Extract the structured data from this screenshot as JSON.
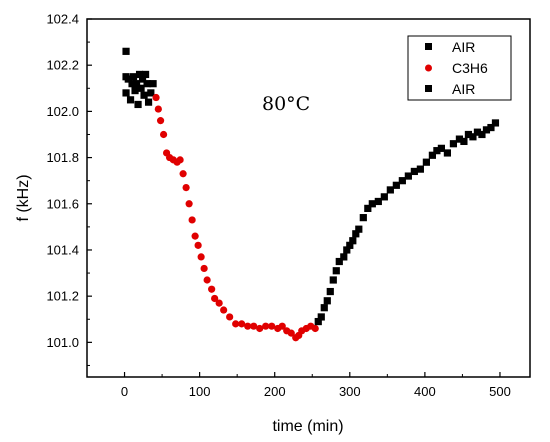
{
  "chart_data": {
    "type": "scatter",
    "xlabel": "time (min)",
    "ylabel": "f (kHz)",
    "xlim": [
      -50,
      540
    ],
    "ylim": [
      100.85,
      102.4
    ],
    "x_ticks": [
      0,
      100,
      200,
      300,
      400,
      500
    ],
    "y_ticks": [
      101.0,
      101.2,
      101.4,
      101.6,
      101.8,
      102.0,
      102.2,
      102.4
    ],
    "x_tick_labels": [
      "0",
      "100",
      "200",
      "300",
      "400",
      "500"
    ],
    "y_tick_labels": [
      "101.0",
      "101.2",
      "101.4",
      "101.6",
      "101.8",
      "102.0",
      "102.2",
      "102.4"
    ],
    "annotation": "80°C",
    "legend_position": "top-right",
    "series": [
      {
        "name": "AIR",
        "color": "#000000",
        "marker": "square",
        "points": [
          [
            2,
            102.26
          ],
          [
            2,
            102.15
          ],
          [
            2,
            102.08
          ],
          [
            5,
            102.14
          ],
          [
            8,
            102.05
          ],
          [
            10,
            102.12
          ],
          [
            12,
            102.15
          ],
          [
            14,
            102.09
          ],
          [
            16,
            102.12
          ],
          [
            18,
            102.03
          ],
          [
            20,
            102.16
          ],
          [
            22,
            102.1
          ],
          [
            24,
            102.14
          ],
          [
            26,
            102.07
          ],
          [
            28,
            102.16
          ],
          [
            30,
            102.12
          ],
          [
            32,
            102.04
          ],
          [
            35,
            102.08
          ],
          [
            38,
            102.12
          ]
        ]
      },
      {
        "name": "C3H6",
        "color": "#e00000",
        "marker": "circle",
        "points": [
          [
            42,
            102.06
          ],
          [
            45,
            102.01
          ],
          [
            48,
            101.96
          ],
          [
            52,
            101.9
          ],
          [
            56,
            101.82
          ],
          [
            60,
            101.8
          ],
          [
            65,
            101.79
          ],
          [
            70,
            101.78
          ],
          [
            74,
            101.79
          ],
          [
            78,
            101.73
          ],
          [
            82,
            101.67
          ],
          [
            86,
            101.6
          ],
          [
            90,
            101.53
          ],
          [
            94,
            101.46
          ],
          [
            98,
            101.42
          ],
          [
            102,
            101.37
          ],
          [
            106,
            101.32
          ],
          [
            110,
            101.27
          ],
          [
            116,
            101.23
          ],
          [
            120,
            101.19
          ],
          [
            126,
            101.17
          ],
          [
            132,
            101.14
          ],
          [
            140,
            101.11
          ],
          [
            148,
            101.08
          ],
          [
            156,
            101.08
          ],
          [
            164,
            101.07
          ],
          [
            172,
            101.07
          ],
          [
            180,
            101.06
          ],
          [
            188,
            101.07
          ],
          [
            196,
            101.07
          ],
          [
            204,
            101.06
          ],
          [
            210,
            101.07
          ],
          [
            216,
            101.05
          ],
          [
            222,
            101.04
          ],
          [
            228,
            101.02
          ],
          [
            232,
            101.03
          ],
          [
            236,
            101.05
          ],
          [
            242,
            101.06
          ],
          [
            248,
            101.07
          ],
          [
            254,
            101.06
          ]
        ]
      },
      {
        "name": "AIR",
        "color": "#000000",
        "marker": "square",
        "points": [
          [
            258,
            101.09
          ],
          [
            262,
            101.11
          ],
          [
            266,
            101.15
          ],
          [
            270,
            101.18
          ],
          [
            274,
            101.22
          ],
          [
            278,
            101.27
          ],
          [
            282,
            101.31
          ],
          [
            286,
            101.35
          ],
          [
            292,
            101.37
          ],
          [
            296,
            101.4
          ],
          [
            300,
            101.42
          ],
          [
            304,
            101.44
          ],
          [
            308,
            101.47
          ],
          [
            312,
            101.49
          ],
          [
            318,
            101.54
          ],
          [
            324,
            101.58
          ],
          [
            330,
            101.6
          ],
          [
            338,
            101.61
          ],
          [
            346,
            101.63
          ],
          [
            354,
            101.66
          ],
          [
            362,
            101.68
          ],
          [
            370,
            101.7
          ],
          [
            378,
            101.72
          ],
          [
            386,
            101.74
          ],
          [
            394,
            101.75
          ],
          [
            402,
            101.78
          ],
          [
            410,
            101.81
          ],
          [
            416,
            101.83
          ],
          [
            422,
            101.84
          ],
          [
            430,
            101.82
          ],
          [
            438,
            101.86
          ],
          [
            446,
            101.88
          ],
          [
            452,
            101.87
          ],
          [
            458,
            101.9
          ],
          [
            464,
            101.89
          ],
          [
            470,
            101.91
          ],
          [
            476,
            101.9
          ],
          [
            482,
            101.92
          ],
          [
            488,
            101.93
          ],
          [
            494,
            101.95
          ]
        ]
      }
    ]
  }
}
